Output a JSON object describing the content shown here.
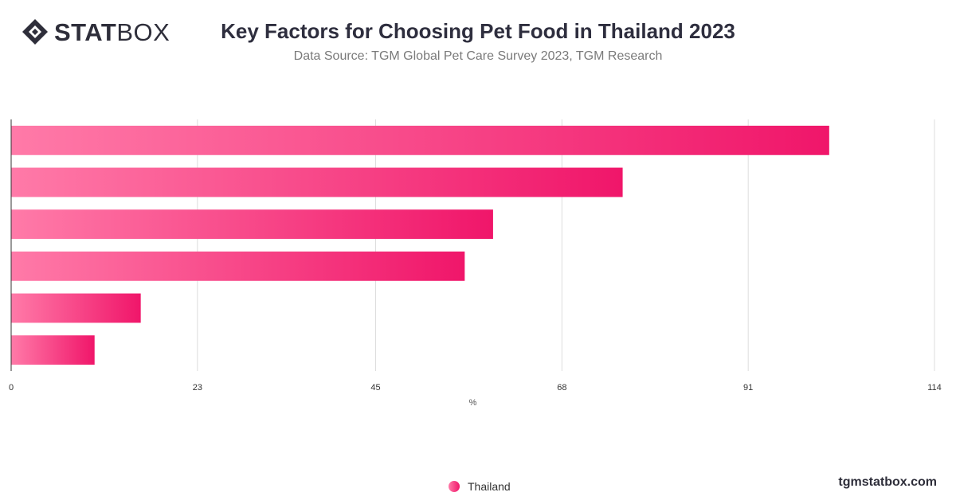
{
  "brand": {
    "logo_strong": "STAT",
    "logo_light": "BOX",
    "site": "tgmstatbox.com"
  },
  "header": {
    "title": "Key Factors for Choosing Pet Food in Thailand 2023",
    "subtitle": "Data Source: TGM Global Pet Care Survey 2023, TGM Research"
  },
  "legend": {
    "label": "Thailand"
  },
  "colors": {
    "bar_start": "#ff7aa8",
    "bar_end": "#f0166a",
    "grid": "#dddddd",
    "axis": "#333333"
  },
  "chart_data": {
    "type": "bar",
    "orientation": "horizontal",
    "series": [
      {
        "name": "Thailand",
        "values": [
          101,
          75.5,
          59.5,
          56,
          16,
          10.3
        ]
      }
    ],
    "xlabel": "%",
    "xticks": [
      0,
      23,
      45,
      68,
      91,
      114
    ],
    "xlim": [
      0,
      114
    ],
    "grid": true,
    "legend_position": "bottom"
  }
}
